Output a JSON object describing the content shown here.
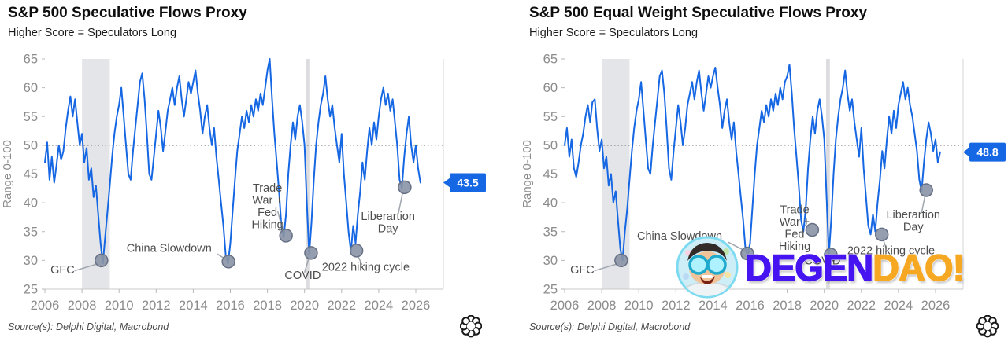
{
  "watermark": {
    "text_primary": "DEGEN",
    "text_secondary": "DAO!",
    "color_primary": "#4514f0",
    "color_secondary": "#f7a823",
    "avatar": "degen-scientist-avatar"
  },
  "colors": {
    "line": "#1667e3",
    "callout_bg": "#1667e3",
    "callout_text": "#ffffff",
    "band": "#e3e5e9",
    "band_thin": "#dcdcde",
    "marker_fill": "#8a93a5",
    "marker_stroke": "#667084",
    "annotation": "#4d4d4d",
    "leader": "#a0a6ae",
    "axis_text": "#8c8c8c",
    "axis_line": "#c9c9c9",
    "border_line": "#d4d4d6",
    "reference_line": "#3d3d3d"
  },
  "chart_data": [
    {
      "type": "line",
      "title": "S&P 500 Speculative Flows Proxy",
      "subtitle": "Higher Score = Speculators Long",
      "source": "Source(s): Delphi Digital, Macrobond",
      "ylabel": "Range 0-100",
      "x_ticks": [
        2006,
        2008,
        2010,
        2012,
        2014,
        2016,
        2018,
        2020,
        2022,
        2024,
        2026
      ],
      "y_ticks": [
        25,
        30,
        35,
        40,
        45,
        50,
        55,
        60,
        65
      ],
      "ylim": [
        25,
        65
      ],
      "xlim": [
        2006,
        2027.5
      ],
      "grid": false,
      "legend": false,
      "reference_line_y": 50,
      "recession_bands": [
        {
          "x1": 2008.0,
          "x2": 2009.5
        },
        {
          "x1": 2020.1,
          "x2": 2020.3
        }
      ],
      "series": {
        "name": "S&P 500 Speculative Flows Proxy",
        "x_start": 2006.0,
        "x_step": 0.125,
        "values": [
          47,
          50.5,
          44,
          48,
          43.5,
          46.5,
          50,
          47.5,
          49,
          53,
          56,
          58.5,
          55,
          58,
          54,
          50,
          52,
          47,
          49.5,
          44,
          46,
          41,
          43,
          38,
          33,
          29.5,
          34,
          38.5,
          43,
          48,
          52,
          55,
          57,
          60,
          55,
          50,
          45,
          44,
          49,
          53,
          57,
          61,
          62.5,
          58,
          52,
          45,
          44,
          48,
          52,
          56,
          53,
          49,
          52.5,
          56,
          58,
          60,
          57,
          60,
          62,
          58,
          55,
          58,
          61,
          59,
          61,
          63,
          59,
          56,
          52,
          55,
          57,
          53,
          50,
          53,
          48,
          44,
          40,
          36,
          31,
          29.5,
          33,
          38.5,
          44,
          49,
          52,
          55,
          53,
          56,
          54,
          57,
          55,
          58,
          56,
          59,
          57,
          60,
          63,
          65,
          58,
          52,
          47,
          42,
          36,
          34,
          38,
          45,
          50,
          54,
          51,
          55,
          57,
          54,
          50,
          40,
          31,
          36.5,
          44,
          50,
          54,
          57,
          59,
          62,
          58,
          55,
          57,
          53,
          50,
          47,
          52,
          45,
          40,
          35,
          31.5,
          36,
          33,
          38,
          42,
          47,
          44,
          49,
          53,
          50,
          54,
          51,
          55,
          58,
          60,
          57,
          59,
          56,
          58,
          54,
          50,
          44,
          42.5,
          48,
          52,
          55,
          50,
          47,
          50,
          46,
          43.5
        ]
      },
      "event_markers": [
        {
          "label": "GFC",
          "x": 2009.05,
          "y": 30
        },
        {
          "label": "China Slowdown",
          "x": 2015.9,
          "y": 29.8
        },
        {
          "label": "Trade War + Fed Hiking",
          "x": 2019.0,
          "y": 34.3
        },
        {
          "label": "COVID",
          "x": 2020.35,
          "y": 31.3
        },
        {
          "label": "2022 hiking cycle",
          "x": 2022.8,
          "y": 31.7
        },
        {
          "label": "Liberartion Day",
          "x": 2025.4,
          "y": 42.7
        }
      ],
      "annotations": [
        {
          "lines": [
            "GFC"
          ],
          "x": 2006.95,
          "y": 27.7,
          "leader": [
            2007.6,
            28.2,
            2008.85,
            29.4
          ]
        },
        {
          "lines": [
            "China Slowdown"
          ],
          "x": 2012.7,
          "y": 31.5,
          "leader": [
            2015.3,
            31.1,
            2015.75,
            30.2
          ]
        },
        {
          "lines": [
            "Trade",
            "War +",
            "Fed",
            "Hiking"
          ],
          "x": 2018.0,
          "y": 41.9,
          "leader": [
            2018.55,
            38.6,
            2018.85,
            34.8
          ]
        },
        {
          "lines": [
            "COVID"
          ],
          "x": 2019.9,
          "y": 26.8,
          "leader": [
            2020.0,
            27.9,
            2020.25,
            30.6
          ]
        },
        {
          "lines": [
            "2022 hiking cycle"
          ],
          "x": 2023.3,
          "y": 28.2,
          "leader": [
            2023.1,
            29.2,
            2022.85,
            31.0
          ]
        },
        {
          "lines": [
            "Liberartion",
            "Day"
          ],
          "x": 2024.5,
          "y": 37.0,
          "leader": [
            2025.05,
            38.0,
            2025.3,
            41.9
          ]
        }
      ],
      "last_value": {
        "label": "43.5",
        "value": 43.5
      }
    },
    {
      "type": "line",
      "title": "S&P 500 Equal Weight Speculative Flows Proxy",
      "subtitle": "Higher Score = Speculators Long",
      "source": "Source(s): Delphi Digital, Macrobond",
      "ylabel": "Range 0-100",
      "x_ticks": [
        2006,
        2008,
        2010,
        2012,
        2014,
        2016,
        2018,
        2020,
        2022,
        2024,
        2026
      ],
      "y_ticks": [
        25,
        30,
        35,
        40,
        45,
        50,
        55,
        60,
        65
      ],
      "ylim": [
        25,
        65
      ],
      "xlim": [
        2006,
        2027.5
      ],
      "grid": false,
      "legend": false,
      "reference_line_y": 50,
      "recession_bands": [
        {
          "x1": 2008.0,
          "x2": 2009.5
        },
        {
          "x1": 2020.1,
          "x2": 2020.3
        }
      ],
      "series": {
        "name": "S&P 500 Equal Weight Speculative Flows Proxy",
        "x_start": 2006.0,
        "x_step": 0.125,
        "values": [
          50,
          53,
          48,
          51,
          46,
          44.5,
          47,
          50,
          52,
          55,
          57,
          54,
          57.5,
          58,
          53,
          49,
          51,
          46,
          48,
          43,
          45,
          40,
          42,
          37,
          32,
          30,
          35,
          39,
          44,
          49,
          53,
          56,
          58,
          61,
          56,
          51,
          46,
          45,
          50,
          54,
          58,
          62,
          63,
          59,
          53,
          46,
          44,
          49,
          53,
          57,
          54,
          50,
          53,
          57,
          59,
          61,
          58,
          61,
          63,
          59,
          56,
          59,
          62,
          60,
          62,
          63.5,
          60,
          57,
          53,
          56,
          58,
          54,
          51,
          54,
          49,
          45,
          41,
          37,
          32,
          31,
          33,
          39,
          45,
          50,
          53,
          56,
          54,
          57,
          55,
          58,
          56,
          59,
          57,
          60,
          58,
          61,
          62,
          64,
          59,
          53,
          48,
          43,
          37,
          35,
          39,
          46,
          51,
          55,
          52,
          56,
          58,
          55,
          51,
          41,
          31,
          37,
          45,
          51,
          55,
          58,
          60,
          63,
          59,
          56,
          58,
          54,
          51,
          48,
          53,
          46,
          41,
          36,
          34.5,
          38,
          35,
          40,
          44,
          49,
          46,
          51,
          55,
          52,
          56,
          53,
          57,
          59,
          61,
          58,
          60,
          57,
          55,
          52,
          49,
          44,
          42,
          47,
          51,
          54,
          52,
          49,
          51,
          47,
          48.8
        ]
      },
      "event_markers": [
        {
          "label": "GFC",
          "x": 2009.05,
          "y": 30
        },
        {
          "label": "China Slowdown",
          "x": 2015.85,
          "y": 31.2
        },
        {
          "label": "Trade War + Fed Hiking",
          "x": 2019.35,
          "y": 35.3
        },
        {
          "label": "COVID",
          "x": 2020.35,
          "y": 31
        },
        {
          "label": "2022 hiking cycle",
          "x": 2023.1,
          "y": 34.5
        },
        {
          "label": "Liberartion Day",
          "x": 2025.5,
          "y": 42.2
        }
      ],
      "annotations": [
        {
          "lines": [
            "GFC"
          ],
          "x": 2006.95,
          "y": 27.7,
          "leader": [
            2007.6,
            28.2,
            2008.85,
            29.4
          ]
        },
        {
          "lines": [
            "China Slowdown"
          ],
          "x": 2012.2,
          "y": 33.6,
          "leader": [
            2014.8,
            33.2,
            2015.7,
            31.7
          ]
        },
        {
          "lines": [
            "Trade",
            "War +",
            "Fed",
            "Hiking"
          ],
          "x": 2018.4,
          "y": 38.2,
          "leader": [
            2018.95,
            36.2,
            2019.25,
            35.6
          ]
        },
        {
          "lines": [
            "COVID"
          ],
          "x": 2019.9,
          "y": 29.3,
          "leader": [
            2020.05,
            30.2,
            2020.3,
            30.8
          ]
        },
        {
          "lines": [
            "2022 hiking cycle"
          ],
          "x": 2023.6,
          "y": 31.1,
          "leader": [
            2023.35,
            32.0,
            2023.15,
            33.9
          ]
        },
        {
          "lines": [
            "Liberartion",
            "Day"
          ],
          "x": 2024.8,
          "y": 37.3,
          "leader": [
            2025.25,
            38.3,
            2025.45,
            41.5
          ]
        }
      ],
      "last_value": {
        "label": "48.8",
        "value": 48.8
      }
    }
  ]
}
